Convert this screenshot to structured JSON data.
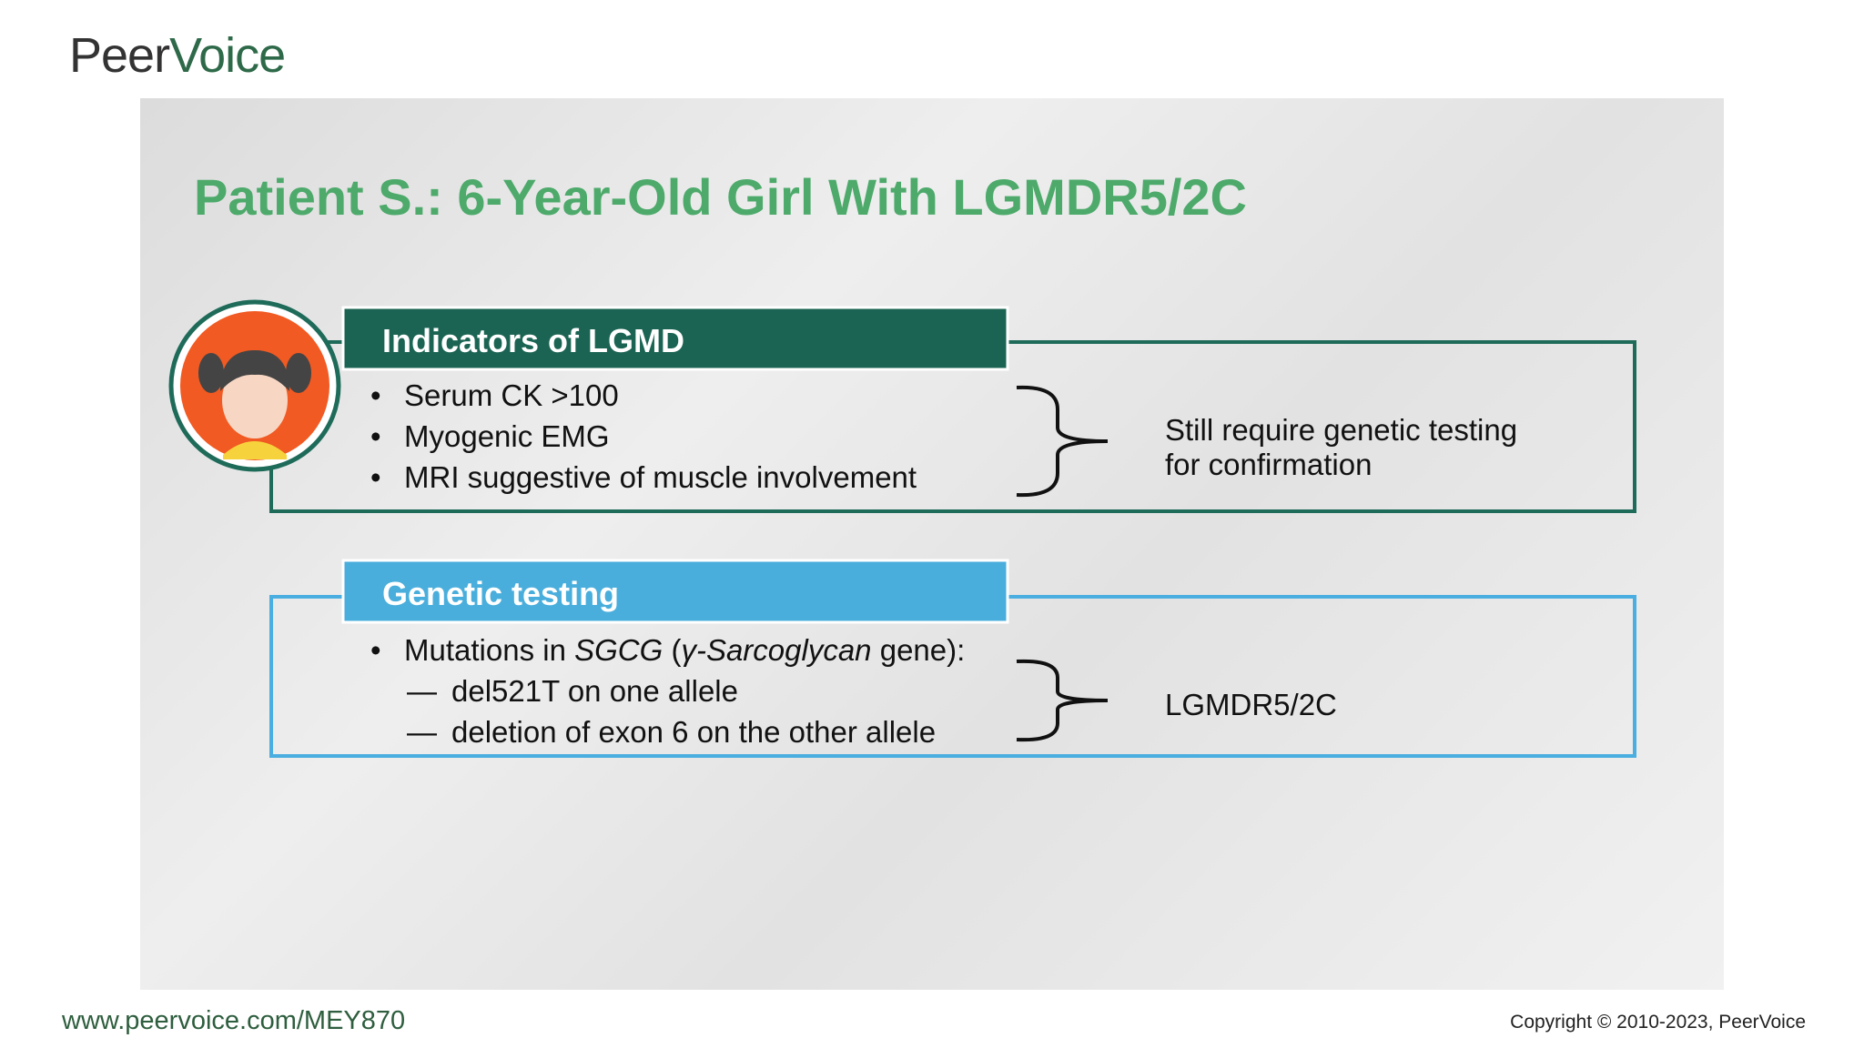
{
  "logo": {
    "parts": [
      "Peer",
      "Voice"
    ]
  },
  "slide": {
    "title": "Patient S.: 6-Year-Old Girl With LGMDR5/2C",
    "indicators": {
      "header": "Indicators of LGMD",
      "bullets": [
        "Serum CK >100",
        "Myogenic EMG",
        "MRI suggestive of muscle involvement"
      ],
      "conclusion": [
        "Still require genetic testing",
        "for confirmation"
      ]
    },
    "genetic": {
      "header": "Genetic testing",
      "bullet": [
        "Mutations in ",
        "SGCG",
        " (",
        "γ-Sarcoglycan",
        " gene):"
      ],
      "subbullets": [
        "del521T on one allele",
        "deletion of exon 6 on the other allele"
      ],
      "conclusion": "LGMDR5/2C"
    }
  },
  "footer": {
    "url": "www.peervoice.com/MEY870",
    "copyright": "Copyright © 2010-2023, PeerVoice"
  }
}
